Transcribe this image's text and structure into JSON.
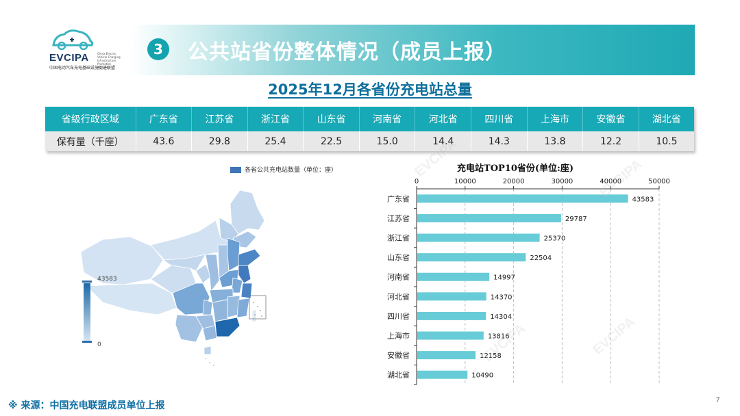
{
  "logo": {
    "name": "EVCIPA",
    "subtitle": "中国电动汽车充电基础设施促进联盟",
    "english": "China Electric Vehicle Charging Infrastructure Promotion Alliance"
  },
  "header": {
    "section_number": "3",
    "title": "公共站省份整体情况（成员上报）"
  },
  "table": {
    "title": "2025年12月各省份充电站总量",
    "header_label": "省级行政区域",
    "row_label": "保有量（千座）",
    "provinces": [
      "广东省",
      "江苏省",
      "浙江省",
      "山东省",
      "河南省",
      "河北省",
      "四川省",
      "上海市",
      "安徽省",
      "湖北省"
    ],
    "values": [
      "43.6",
      "29.8",
      "25.4",
      "22.5",
      "15.0",
      "14.4",
      "14.3",
      "13.8",
      "12.2",
      "10.5"
    ]
  },
  "map": {
    "legend_label": "各省公共充电站数量（单位：座）",
    "scale_max": "43583",
    "scale_min": "0",
    "colors": {
      "high": "#1e6aa8",
      "low": "#d9e8f5"
    }
  },
  "chart_data": {
    "type": "bar",
    "orientation": "horizontal",
    "title": "充电站TOP10省份(单位:座)",
    "categories": [
      "广东省",
      "江苏省",
      "浙江省",
      "山东省",
      "河南省",
      "河北省",
      "四川省",
      "上海市",
      "安徽省",
      "湖北省"
    ],
    "values": [
      43583,
      29787,
      25370,
      22504,
      14997,
      14370,
      14304,
      13816,
      12158,
      10490
    ],
    "xlim": [
      0,
      50000
    ],
    "xticks": [
      0,
      10000,
      20000,
      30000,
      40000,
      50000
    ],
    "axis_position": "top",
    "grid": true,
    "bar_color": "#68ccd8",
    "data_labels": true
  },
  "footer": {
    "source": "※ 来源：中国充电联盟成员单位上报",
    "page_number": "7"
  },
  "watermark_text": "EVCIPA"
}
